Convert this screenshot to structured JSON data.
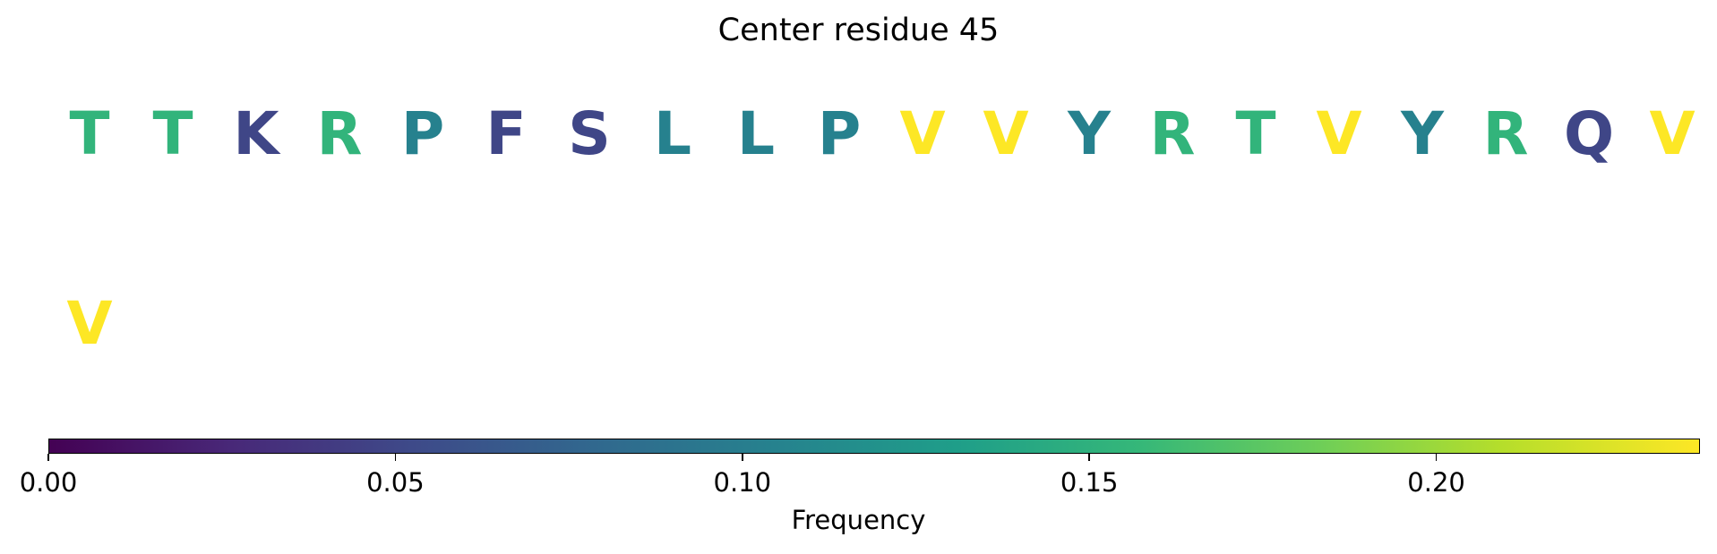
{
  "chart_data": {
    "type": "sequence-logo",
    "title": "Center residue 45",
    "residues": [
      {
        "letter": "T",
        "freq": 0.155
      },
      {
        "letter": "T",
        "freq": 0.155
      },
      {
        "letter": "K",
        "freq": 0.05
      },
      {
        "letter": "R",
        "freq": 0.155
      },
      {
        "letter": "P",
        "freq": 0.105
      },
      {
        "letter": "F",
        "freq": 0.05
      },
      {
        "letter": "S",
        "freq": 0.05
      },
      {
        "letter": "L",
        "freq": 0.105
      },
      {
        "letter": "L",
        "freq": 0.105
      },
      {
        "letter": "P",
        "freq": 0.105
      },
      {
        "letter": "V",
        "freq": 0.238
      },
      {
        "letter": "V",
        "freq": 0.238
      },
      {
        "letter": "Y",
        "freq": 0.105
      },
      {
        "letter": "R",
        "freq": 0.155
      },
      {
        "letter": "T",
        "freq": 0.155
      },
      {
        "letter": "V",
        "freq": 0.238
      },
      {
        "letter": "Y",
        "freq": 0.105
      },
      {
        "letter": "R",
        "freq": 0.155
      },
      {
        "letter": "Q",
        "freq": 0.05
      },
      {
        "letter": "V",
        "freq": 0.238
      },
      {
        "letter": "V",
        "freq": 0.238
      }
    ],
    "colorbar": {
      "label": "Frequency",
      "range": [
        0,
        0.238
      ],
      "colormap": "viridis",
      "ticks": [
        0.0,
        0.05,
        0.1,
        0.15,
        0.2
      ],
      "tick_labels": [
        "0.00",
        "0.05",
        "0.10",
        "0.15",
        "0.20"
      ]
    }
  }
}
